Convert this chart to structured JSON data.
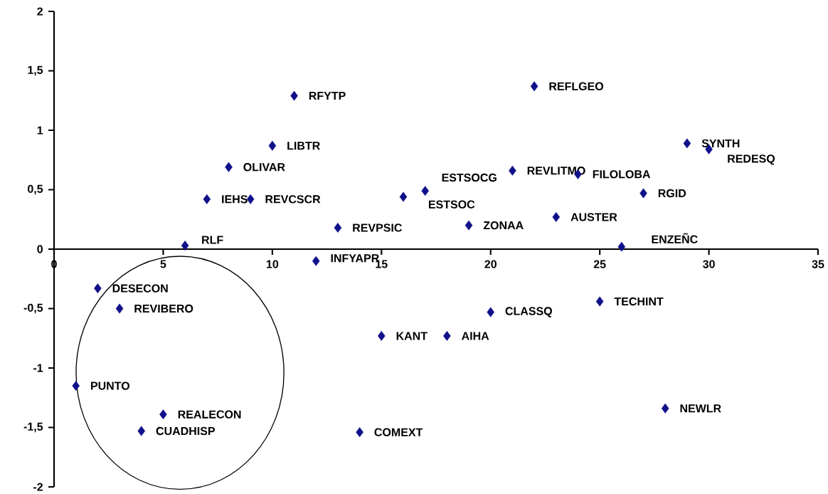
{
  "chart_data": {
    "type": "scatter",
    "marker": "diamond",
    "xlim": [
      0,
      35
    ],
    "ylim": [
      -2,
      2
    ],
    "xticks": [
      0,
      5,
      10,
      15,
      20,
      25,
      30,
      35
    ],
    "yticks": [
      {
        "value": -2,
        "label": "-2"
      },
      {
        "value": -1.5,
        "label": "-1,5"
      },
      {
        "value": -1,
        "label": "-1"
      },
      {
        "value": -0.5,
        "label": "-0,5"
      },
      {
        "value": 0,
        "label": "0"
      },
      {
        "value": 0.5,
        "label": "0,5"
      },
      {
        "value": 1,
        "label": "1"
      },
      {
        "value": 1.5,
        "label": "1,5"
      },
      {
        "value": 2,
        "label": "2"
      }
    ],
    "series": [
      {
        "color": "#10108a",
        "x": [
          11,
          22,
          29,
          30,
          10,
          8,
          21,
          24,
          7,
          9,
          16,
          17,
          27,
          23,
          19,
          13,
          26,
          6,
          12,
          2,
          3,
          20,
          25,
          15,
          18,
          1,
          5,
          4,
          14,
          28
        ],
        "values": [
          1.29,
          1.37,
          0.89,
          0.84,
          0.87,
          0.69,
          0.66,
          0.63,
          0.42,
          0.42,
          0.44,
          0.49,
          0.47,
          0.27,
          0.2,
          0.18,
          0.02,
          0.03,
          -0.1,
          -0.33,
          -0.5,
          -0.53,
          -0.44,
          -0.73,
          -0.73,
          -1.15,
          -1.39,
          -1.53,
          -1.54,
          -1.34
        ]
      }
    ],
    "annotations": [
      {
        "text": "RFYTP",
        "x": 11,
        "y": 1.29
      },
      {
        "text": "REFLGEO",
        "x": 22,
        "y": 1.37
      },
      {
        "text": "SYNTH",
        "x": 29,
        "y": 0.89
      },
      {
        "text": "REDESQ",
        "x": 30,
        "y": 0.84
      },
      {
        "text": "LIBTR",
        "x": 10,
        "y": 0.87
      },
      {
        "text": "OLIVAR",
        "x": 8,
        "y": 0.69
      },
      {
        "text": "REVLITMO",
        "x": 21,
        "y": 0.66
      },
      {
        "text": "FILOLOBA",
        "x": 24,
        "y": 0.63
      },
      {
        "text": "IEHS",
        "x": 7,
        "y": 0.42
      },
      {
        "text": "REVCSCR",
        "x": 9,
        "y": 0.42
      },
      {
        "text": "ESTSOC",
        "x": 16,
        "y": 0.44
      },
      {
        "text": "ESTSOCG",
        "x": 17,
        "y": 0.49
      },
      {
        "text": "RGID",
        "x": 27,
        "y": 0.47
      },
      {
        "text": "AUSTER",
        "x": 23,
        "y": 0.27
      },
      {
        "text": "ZONAA",
        "x": 19,
        "y": 0.2
      },
      {
        "text": "REVPSIC",
        "x": 13,
        "y": 0.18
      },
      {
        "text": "ENZEÑC",
        "x": 26,
        "y": 0.02
      },
      {
        "text": "RLF",
        "x": 6,
        "y": 0.03
      },
      {
        "text": "INFYAPR",
        "x": 12,
        "y": -0.1
      },
      {
        "text": "DESECON",
        "x": 2,
        "y": -0.33
      },
      {
        "text": "REVIBERO",
        "x": 3,
        "y": -0.5
      },
      {
        "text": "CLASSQ",
        "x": 20,
        "y": -0.53
      },
      {
        "text": "TECHINT",
        "x": 25,
        "y": -0.44
      },
      {
        "text": "KANT",
        "x": 15,
        "y": -0.73
      },
      {
        "text": "AIHA",
        "x": 18,
        "y": -0.73
      },
      {
        "text": "PUNTO",
        "x": 1,
        "y": -1.15
      },
      {
        "text": "REALECON",
        "x": 5,
        "y": -1.39
      },
      {
        "text": "CUADHISP",
        "x": 4,
        "y": -1.53
      },
      {
        "text": "COMEXT",
        "x": 14,
        "y": -1.54
      },
      {
        "text": "NEWLR",
        "x": 28,
        "y": -1.34
      }
    ]
  }
}
